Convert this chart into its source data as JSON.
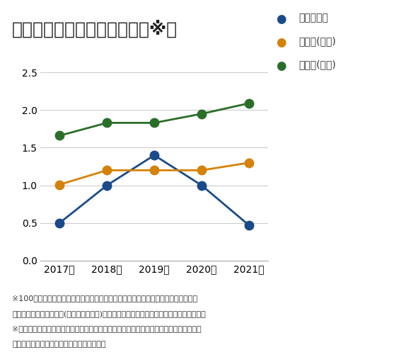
{
  "title": "労働災害の発生状況（度数率※）",
  "years": [
    2017,
    2018,
    2019,
    2020,
    2021
  ],
  "year_labels": [
    "2017年",
    "2018年",
    "2019年",
    "2020年",
    "2021年"
  ],
  "series": [
    {
      "name": "タダノ単独",
      "color": "#1a4a8a",
      "values": [
        0.5,
        1.0,
        1.4,
        1.0,
        0.47
      ]
    },
    {
      "name": "製造業(日本)",
      "color": "#d4820a",
      "values": [
        1.01,
        1.2,
        1.2,
        1.2,
        1.3
      ]
    },
    {
      "name": "全産業(日本)",
      "color": "#2a6e2a",
      "values": [
        1.66,
        1.83,
        1.83,
        1.95,
        2.09
      ]
    }
  ],
  "ylim": [
    0.0,
    2.5
  ],
  "yticks": [
    0.0,
    0.5,
    1.0,
    1.5,
    2.0,
    2.5
  ],
  "footnote_lines": [
    "※100万のべ実労働時間あたりの労働災害件数で、休業災害発生の頻度を表します。",
    "　（製造業および全産業(総合工事業除く)の数値は厚生労働省労働災害動向調査から引用）",
    "※今回の報告より算定対象範囲をタダノ単独における全拠点に拡大しました。なお、この",
    "　変更は過年度に遡及して適用しています。"
  ],
  "background_color": "#ffffff",
  "grid_color": "#cccccc",
  "marker_size": 9,
  "line_width": 2.0,
  "title_fontsize": 18,
  "legend_fontsize": 10,
  "tick_fontsize": 10,
  "footnote_fontsize": 8
}
